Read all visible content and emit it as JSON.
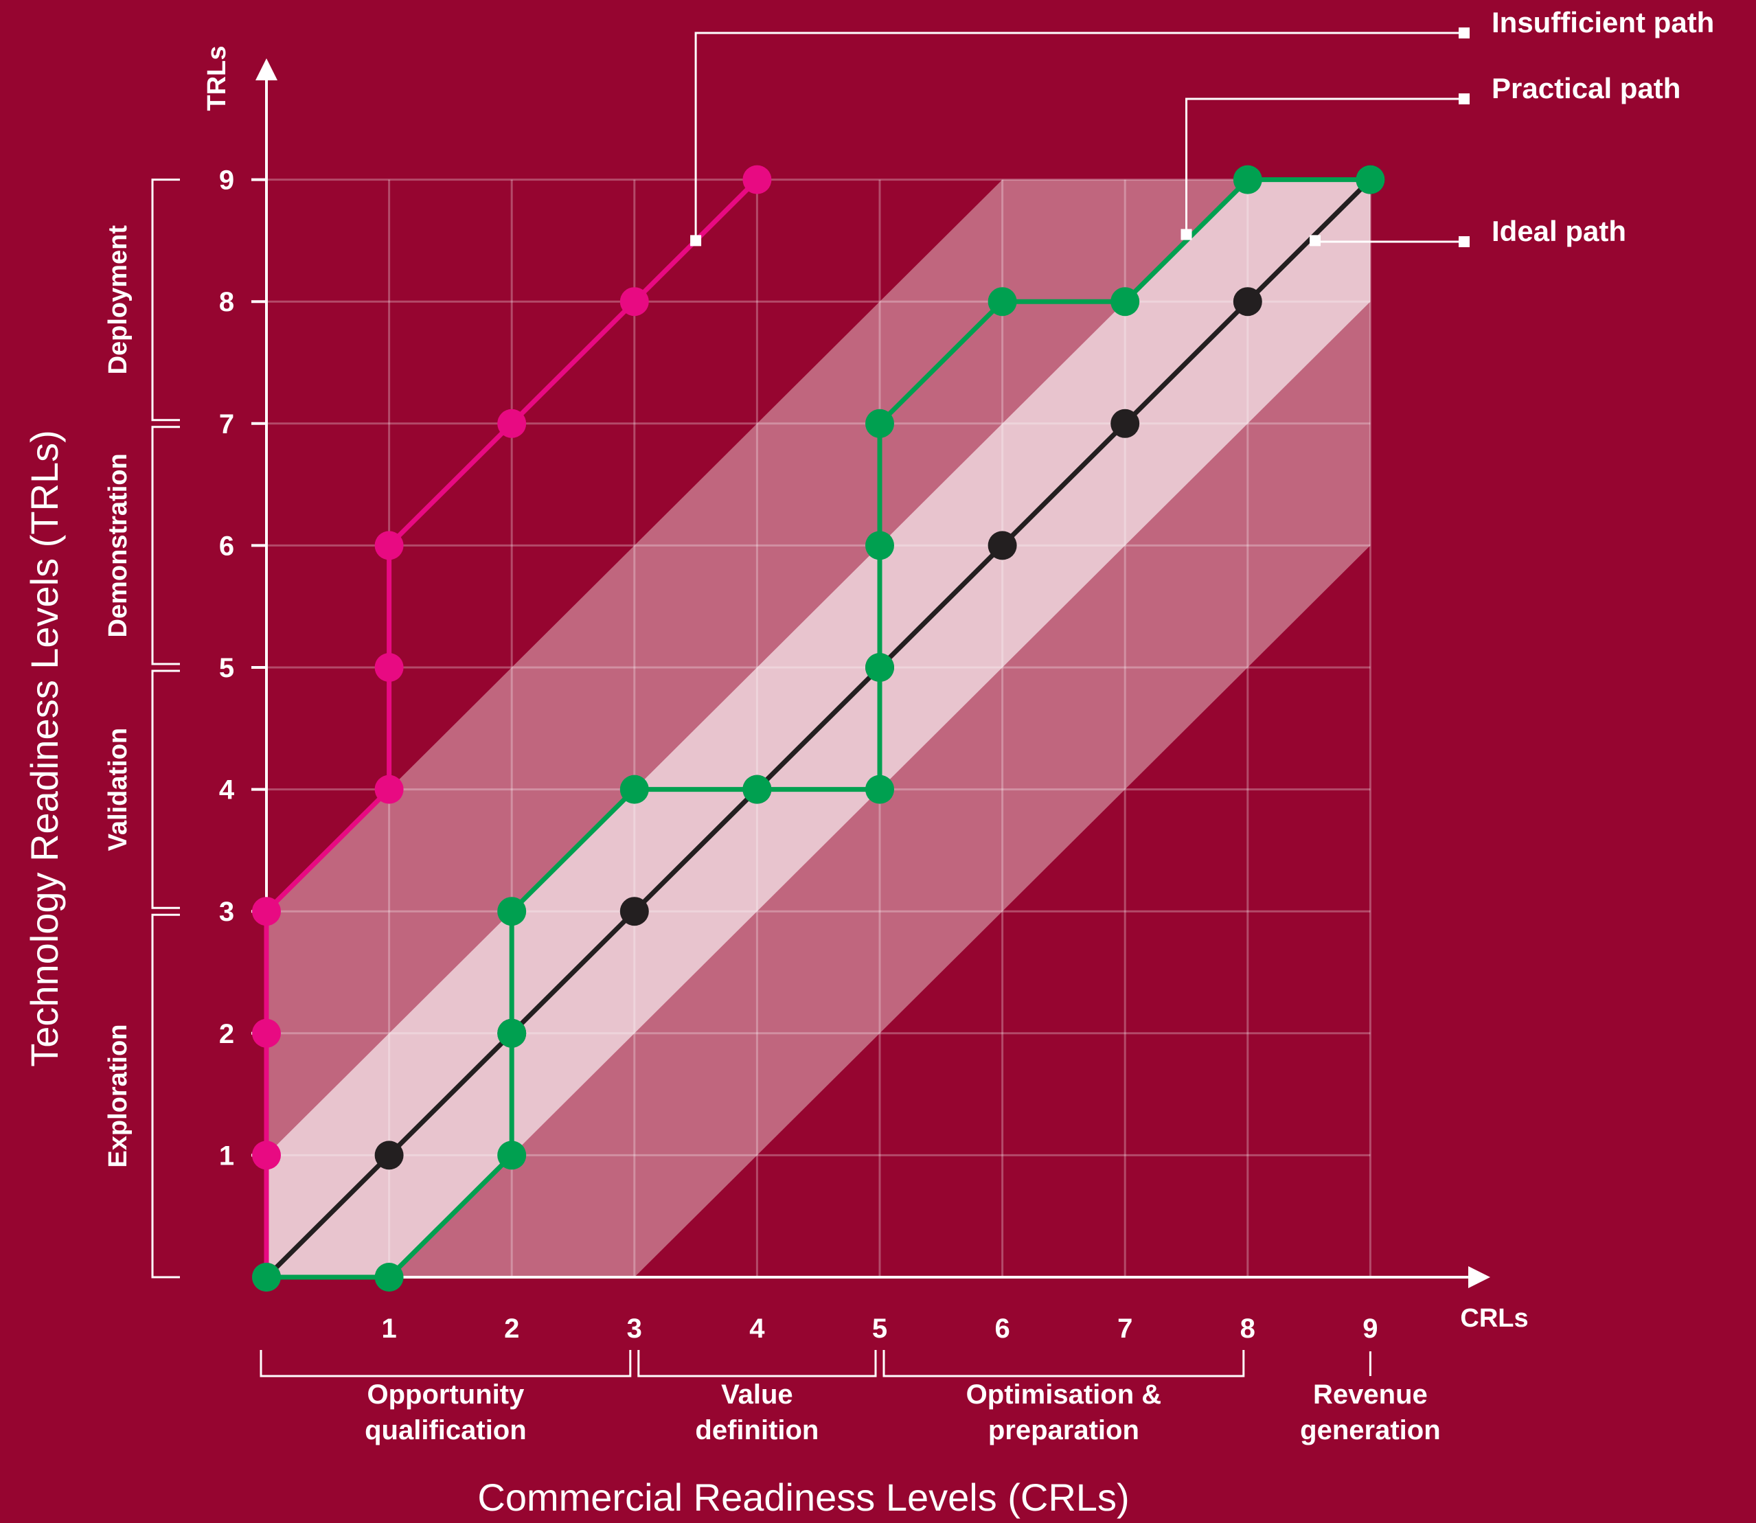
{
  "chart_data": {
    "type": "line",
    "xlabel": "Commercial Readiness Levels (CRLs)",
    "ylabel": "Technology Readiness Levels (TRLs)",
    "x_axis_short": "CRLs",
    "y_axis_short": "TRLs",
    "xlim": [
      0,
      9
    ],
    "ylim": [
      0,
      9
    ],
    "x_ticks": [
      "1",
      "2",
      "3",
      "4",
      "5",
      "6",
      "7",
      "8",
      "9"
    ],
    "y_ticks": [
      "1",
      "2",
      "3",
      "4",
      "5",
      "6",
      "7",
      "8",
      "9"
    ],
    "grid": true,
    "legend_position": "top-right",
    "bands": [
      {
        "name": "outer",
        "lower_offset": -3,
        "upper_offset": 3,
        "color": "#c0667e"
      },
      {
        "name": "inner",
        "lower_offset": -1,
        "upper_offset": 1,
        "color": "#e8c4ce"
      }
    ],
    "series": [
      {
        "name": "Insufficient path",
        "color": "#e80a82",
        "points": [
          [
            0,
            0
          ],
          [
            0,
            1
          ],
          [
            0,
            2
          ],
          [
            0,
            3
          ],
          [
            1,
            4
          ],
          [
            1,
            5
          ],
          [
            1,
            6
          ],
          [
            2,
            7
          ],
          [
            3,
            8
          ],
          [
            4,
            9
          ]
        ]
      },
      {
        "name": "Practical path",
        "color": "#00a050",
        "points": [
          [
            0,
            0
          ],
          [
            1,
            0
          ],
          [
            2,
            1
          ],
          [
            2,
            2
          ],
          [
            2,
            3
          ],
          [
            3,
            4
          ],
          [
            4,
            4
          ],
          [
            5,
            4
          ],
          [
            5,
            5
          ],
          [
            5,
            6
          ],
          [
            5,
            7
          ],
          [
            6,
            8
          ],
          [
            7,
            8
          ],
          [
            8,
            9
          ],
          [
            9,
            9
          ]
        ]
      },
      {
        "name": "Ideal path",
        "color": "#231f20",
        "points": [
          [
            0,
            0
          ],
          [
            1,
            1
          ],
          [
            2,
            2
          ],
          [
            3,
            3
          ],
          [
            4,
            4
          ],
          [
            5,
            5
          ],
          [
            6,
            6
          ],
          [
            7,
            7
          ],
          [
            8,
            8
          ],
          [
            9,
            9
          ]
        ]
      }
    ],
    "trl_phases": [
      {
        "label": "Exploration",
        "from": 0,
        "to": 3
      },
      {
        "label": "Validation",
        "from": 3,
        "to": 5
      },
      {
        "label": "Demonstration",
        "from": 5,
        "to": 7
      },
      {
        "label": "Deployment",
        "from": 7,
        "to": 9
      }
    ],
    "crl_phases": [
      {
        "line1": "Opportunity",
        "line2": "qualification",
        "from": 0,
        "to": 3
      },
      {
        "line1": "Value",
        "line2": "definition",
        "from": 3,
        "to": 5
      },
      {
        "line1": "Optimisation &",
        "line2": "preparation",
        "from": 5,
        "to": 8
      },
      {
        "line1": "Revenue",
        "line2": "generation",
        "from": 9,
        "to": 9
      }
    ]
  }
}
